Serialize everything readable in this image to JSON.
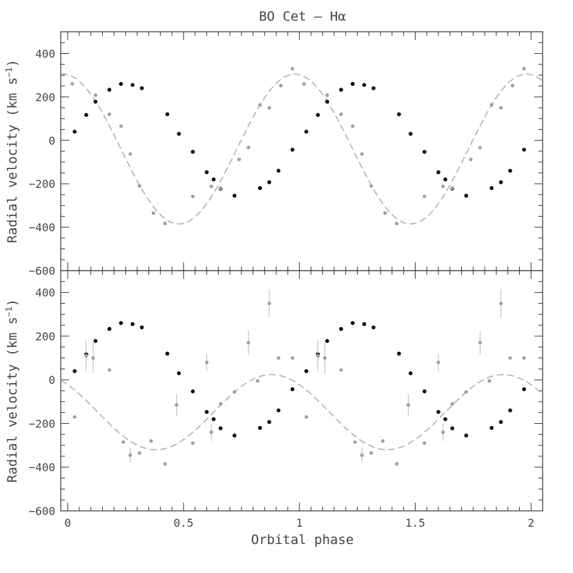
{
  "chart_data": {
    "type": "scatter",
    "title": "BO Cet – Hα",
    "xlabel": "Orbital phase",
    "xlim": [
      -0.03,
      2.05
    ],
    "x_ticks": [
      0,
      0.5,
      1,
      1.5,
      2
    ],
    "x_tick_labels": [
      "0",
      "0.5",
      "1",
      "1.5",
      "2"
    ],
    "ylim": [
      -600,
      500
    ],
    "y_ticks": [
      -600,
      -400,
      -200,
      0,
      200,
      400
    ],
    "y_tick_labels": [
      "−600",
      "−400",
      "−200",
      "0",
      "200",
      "400"
    ],
    "panels": [
      {
        "ylabel": "Radial velocity (km s",
        "ylabel_sup": "−1",
        "ylabel_close": ")",
        "model": {
          "gamma": -40,
          "amplitude": 345,
          "phase_max": 0.98
        },
        "series": [
          {
            "name": "",
            "color": "#000000",
            "points": [
              [
                0.03,
                40
              ],
              [
                0.08,
                117
              ],
              [
                0.12,
                178
              ],
              [
                0.18,
                233
              ],
              [
                0.23,
                260
              ],
              [
                0.28,
                255
              ],
              [
                0.32,
                240
              ],
              [
                0.43,
                120
              ],
              [
                0.48,
                30
              ],
              [
                0.54,
                -53
              ],
              [
                0.6,
                -147
              ],
              [
                0.63,
                -180
              ],
              [
                0.66,
                -222
              ],
              [
                0.72,
                -255
              ],
              [
                0.83,
                -220
              ],
              [
                0.87,
                -193
              ],
              [
                0.91,
                -140
              ],
              [
                0.97,
                -43
              ],
              [
                1.03,
                40
              ],
              [
                1.08,
                117
              ],
              [
                1.12,
                178
              ],
              [
                1.18,
                233
              ],
              [
                1.23,
                260
              ],
              [
                1.28,
                255
              ],
              [
                1.32,
                240
              ],
              [
                1.43,
                120
              ],
              [
                1.48,
                30
              ],
              [
                1.54,
                -53
              ],
              [
                1.6,
                -147
              ],
              [
                1.63,
                -180
              ],
              [
                1.66,
                -222
              ],
              [
                1.72,
                -255
              ],
              [
                1.83,
                -220
              ],
              [
                1.87,
                -193
              ],
              [
                1.91,
                -140
              ],
              [
                1.97,
                -43
              ]
            ]
          },
          {
            "name": "",
            "color": "#a0a0a0",
            "points": [
              [
                0.02,
                260
              ],
              [
                0.12,
                208
              ],
              [
                0.18,
                120
              ],
              [
                0.23,
                65
              ],
              [
                0.27,
                -63
              ],
              [
                0.31,
                -210
              ],
              [
                0.37,
                -335
              ],
              [
                0.42,
                -383
              ],
              [
                0.54,
                -258
              ],
              [
                0.62,
                -212
              ],
              [
                0.66,
                -220
              ],
              [
                0.78,
                -33
              ],
              [
                0.74,
                -88
              ],
              [
                0.83,
                163
              ],
              [
                0.87,
                150
              ],
              [
                0.92,
                252
              ],
              [
                0.97,
                330
              ],
              [
                1.02,
                260
              ],
              [
                1.12,
                208
              ],
              [
                1.18,
                120
              ],
              [
                1.23,
                65
              ],
              [
                1.27,
                -63
              ],
              [
                1.31,
                -210
              ],
              [
                1.37,
                -335
              ],
              [
                1.42,
                -383
              ],
              [
                1.54,
                -258
              ],
              [
                1.62,
                -212
              ],
              [
                1.66,
                -220
              ],
              [
                1.78,
                -33
              ],
              [
                1.74,
                -88
              ],
              [
                1.83,
                163
              ],
              [
                1.87,
                150
              ],
              [
                1.92,
                252
              ],
              [
                1.97,
                330
              ]
            ]
          }
        ]
      },
      {
        "ylabel": "Radial velocity (km s",
        "ylabel_sup": "−1",
        "ylabel_close": ")",
        "model": {
          "gamma": -148,
          "amplitude": 172,
          "phase_max": 0.88
        },
        "series": [
          {
            "name": "",
            "color": "#000000",
            "points": [
              [
                0.03,
                40
              ],
              [
                0.08,
                117
              ],
              [
                0.12,
                178
              ],
              [
                0.18,
                233
              ],
              [
                0.23,
                260
              ],
              [
                0.28,
                255
              ],
              [
                0.32,
                240
              ],
              [
                0.43,
                120
              ],
              [
                0.48,
                30
              ],
              [
                0.54,
                -53
              ],
              [
                0.6,
                -147
              ],
              [
                0.63,
                -180
              ],
              [
                0.66,
                -222
              ],
              [
                0.72,
                -255
              ],
              [
                0.83,
                -220
              ],
              [
                0.87,
                -193
              ],
              [
                0.91,
                -140
              ],
              [
                0.97,
                -43
              ],
              [
                1.03,
                40
              ],
              [
                1.08,
                117
              ],
              [
                1.12,
                178
              ],
              [
                1.18,
                233
              ],
              [
                1.23,
                260
              ],
              [
                1.28,
                255
              ],
              [
                1.32,
                240
              ],
              [
                1.43,
                120
              ],
              [
                1.48,
                30
              ],
              [
                1.54,
                -53
              ],
              [
                1.6,
                -147
              ],
              [
                1.63,
                -180
              ],
              [
                1.66,
                -222
              ],
              [
                1.72,
                -255
              ],
              [
                1.83,
                -220
              ],
              [
                1.87,
                -193
              ],
              [
                1.91,
                -140
              ],
              [
                1.97,
                -43
              ]
            ]
          },
          {
            "name": "",
            "color": "#a0a0a0",
            "points": [
              [
                0.03,
                -170,
                0
              ],
              [
                0.08,
                110,
                70
              ],
              [
                0.11,
                100,
                70
              ],
              [
                0.18,
                45,
                0
              ],
              [
                0.24,
                -285,
                0
              ],
              [
                0.27,
                -345,
                35
              ],
              [
                0.31,
                -335,
                0
              ],
              [
                0.36,
                -280,
                0
              ],
              [
                0.42,
                -385,
                0
              ],
              [
                0.47,
                -115,
                50
              ],
              [
                0.54,
                -290,
                0
              ],
              [
                0.6,
                80,
                40
              ],
              [
                0.62,
                -240,
                40
              ],
              [
                0.66,
                -110,
                0
              ],
              [
                0.72,
                -55,
                0
              ],
              [
                0.78,
                170,
                55
              ],
              [
                0.82,
                -5,
                0
              ],
              [
                0.87,
                350,
                65
              ],
              [
                0.91,
                100,
                0
              ],
              [
                0.97,
                100,
                0
              ],
              [
                1.03,
                -170,
                0
              ],
              [
                1.08,
                110,
                70
              ],
              [
                1.11,
                100,
                70
              ],
              [
                1.18,
                45,
                0
              ],
              [
                1.24,
                -285,
                0
              ],
              [
                1.27,
                -345,
                35
              ],
              [
                1.31,
                -335,
                0
              ],
              [
                1.36,
                -280,
                0
              ],
              [
                1.42,
                -385,
                0
              ],
              [
                1.47,
                -115,
                50
              ],
              [
                1.54,
                -290,
                0
              ],
              [
                1.6,
                80,
                40
              ],
              [
                1.62,
                -240,
                40
              ],
              [
                1.66,
                -110,
                0
              ],
              [
                1.72,
                -55,
                0
              ],
              [
                1.78,
                170,
                55
              ],
              [
                1.82,
                -5,
                0
              ],
              [
                1.87,
                350,
                65
              ],
              [
                1.91,
                100,
                0
              ],
              [
                1.97,
                100,
                0
              ]
            ]
          }
        ]
      }
    ]
  }
}
